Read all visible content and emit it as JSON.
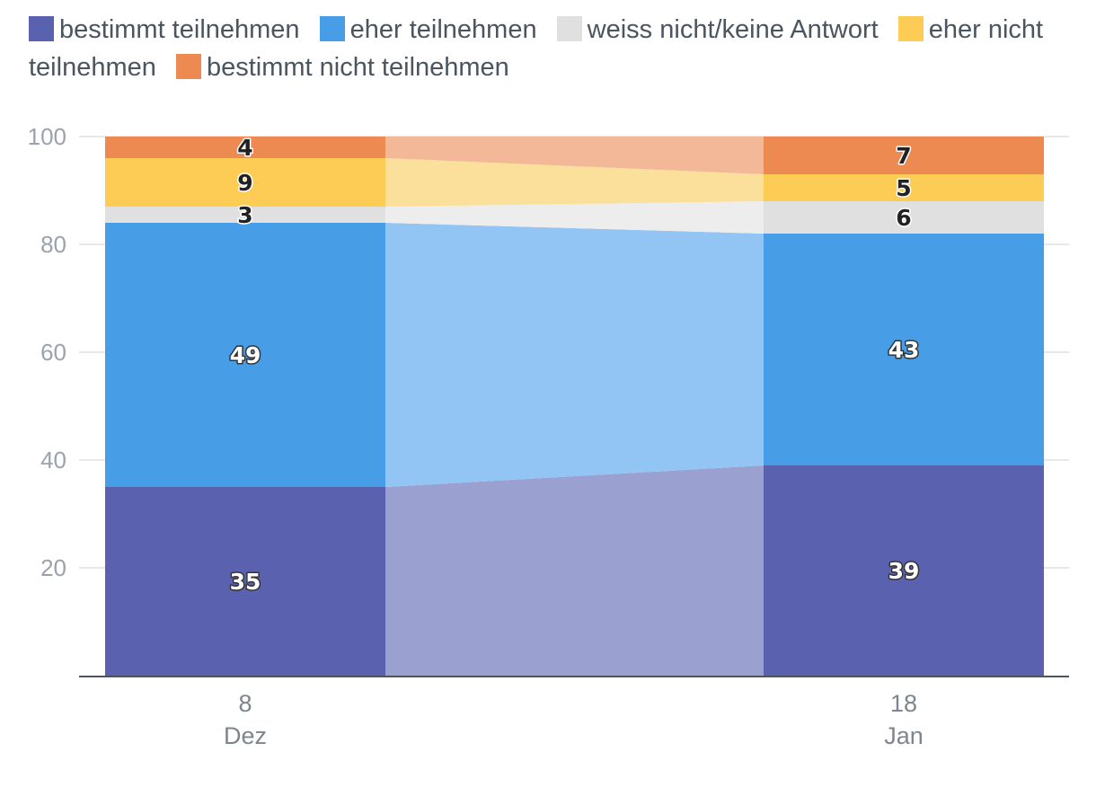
{
  "chart_data": {
    "type": "bar",
    "stacked": true,
    "categories": [
      {
        "day": "8",
        "month": "Dez"
      },
      {
        "day": "18",
        "month": "Jan"
      }
    ],
    "series": [
      {
        "name": "bestimmt teilnehmen",
        "color": "#5a62b0",
        "connector_color": "#9aa1d1",
        "label_color": "#ffffff",
        "values": [
          35,
          39
        ]
      },
      {
        "name": "eher teilnehmen",
        "color": "#489de7",
        "connector_color": "#92c4f4",
        "label_color": "#ffffff",
        "values": [
          49,
          43
        ]
      },
      {
        "name": "weiss nicht/keine Antwort",
        "color": "#e0e0e0",
        "connector_color": "#ededed",
        "label_color": "#222222",
        "values": [
          3,
          6
        ]
      },
      {
        "name": "eher nicht teilnehmen",
        "color": "#fdcc54",
        "connector_color": "#fbe09c",
        "label_color": "#222222",
        "values": [
          9,
          5
        ]
      },
      {
        "name": "bestimmt nicht teilnehmen",
        "color": "#ec8a52",
        "connector_color": "#f2b898",
        "label_color": "#222222",
        "values": [
          4,
          7
        ]
      }
    ],
    "ylim": [
      0,
      100
    ],
    "yticks": [
      20,
      40,
      60,
      80,
      100
    ],
    "grid": true,
    "legend_position": "top",
    "xlabel": "",
    "ylabel": "",
    "title": ""
  }
}
